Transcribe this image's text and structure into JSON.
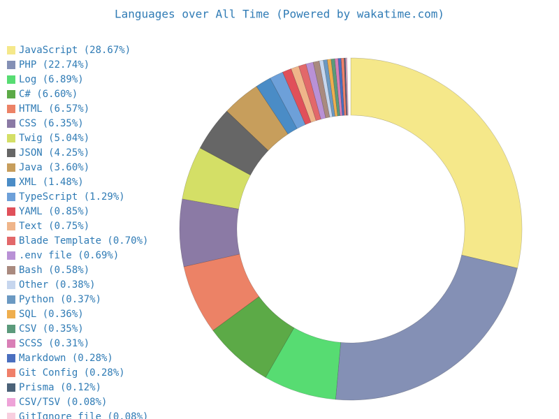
{
  "chart_data": {
    "type": "donut",
    "title": "Languages over All Time (Powered by wakatime.com)",
    "categories": [
      "JavaScript (28.67%)",
      "PHP (22.74%)",
      "Log (6.89%)",
      "C# (6.60%)",
      "HTML (6.57%)",
      "CSS (6.35%)",
      "Twig (5.04%)",
      "JSON (4.25%)",
      "Java (3.60%)",
      "XML (1.48%)",
      "TypeScript (1.29%)",
      "YAML (0.85%)",
      "Text (0.75%)",
      "Blade Template (0.70%)",
      ".env file (0.69%)",
      "Bash (0.58%)",
      "Other (0.38%)",
      "Python (0.37%)",
      "SQL (0.36%)",
      "CSV (0.35%)",
      "SCSS (0.31%)",
      "Markdown (0.28%)",
      "Git Config (0.28%)",
      "Prisma (0.12%)",
      "CSV/TSV (0.08%)",
      "GitIgnore file (0.08%)"
    ],
    "values": [
      28.67,
      22.74,
      6.89,
      6.6,
      6.57,
      6.35,
      5.04,
      4.25,
      3.6,
      1.48,
      1.29,
      0.85,
      0.75,
      0.7,
      0.69,
      0.58,
      0.38,
      0.37,
      0.36,
      0.35,
      0.31,
      0.28,
      0.28,
      0.12,
      0.08,
      0.08
    ],
    "colors": [
      "#f5e88a",
      "#8490b5",
      "#57dc72",
      "#5caa47",
      "#ec8266",
      "#8b7aa5",
      "#d4df66",
      "#666666",
      "#c79e5c",
      "#4a8cc6",
      "#6da0d9",
      "#e0505a",
      "#efb58a",
      "#e2686a",
      "#b991d6",
      "#a98a7f",
      "#c6d6ee",
      "#6b99c2",
      "#efae4e",
      "#5b9a7b",
      "#d97fb6",
      "#4a6fbf",
      "#f0806a",
      "#4b6278",
      "#eea3d8",
      "#f8cfe0"
    ]
  }
}
